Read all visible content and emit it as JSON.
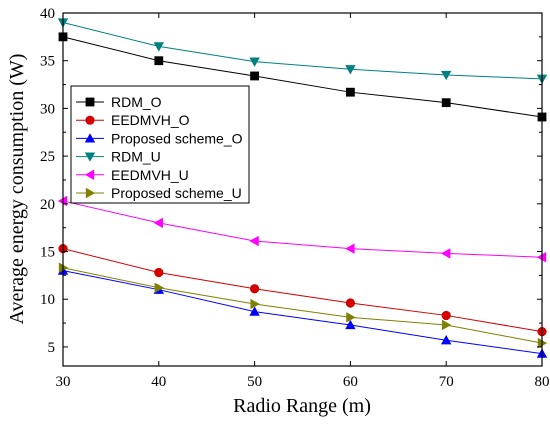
{
  "chart_data": {
    "type": "line",
    "title": "",
    "xlabel": "Radio Range (m)",
    "ylabel": "Average energy consumption (W)",
    "xlim": [
      30,
      80
    ],
    "ylim": [
      3,
      40
    ],
    "x_ticks": [
      30,
      40,
      50,
      60,
      70,
      80
    ],
    "y_ticks": [
      5,
      10,
      15,
      20,
      25,
      30,
      35,
      40
    ],
    "grid": false,
    "legend_position": "center-left",
    "x": [
      30,
      40,
      50,
      60,
      70,
      80
    ],
    "series": [
      {
        "name": "RDM_O",
        "values": [
          37.5,
          35.0,
          33.4,
          31.7,
          30.6,
          29.1
        ],
        "color": "#000000",
        "marker": "square"
      },
      {
        "name": "EEDMVH_O",
        "values": [
          15.3,
          12.8,
          11.1,
          9.6,
          8.3,
          6.6
        ],
        "color": "#d40000",
        "marker": "circle"
      },
      {
        "name": "Proposed scheme_O",
        "values": [
          13.0,
          11.0,
          8.7,
          7.3,
          5.7,
          4.3
        ],
        "color": "#0000ff",
        "marker": "triangle-up"
      },
      {
        "name": "RDM_U",
        "values": [
          39.0,
          36.5,
          34.9,
          34.1,
          33.5,
          33.1
        ],
        "color": "#008080",
        "marker": "triangle-down"
      },
      {
        "name": "EEDMVH_U",
        "values": [
          20.3,
          18.0,
          16.1,
          15.3,
          14.8,
          14.4
        ],
        "color": "#ff00ff",
        "marker": "triangle-left"
      },
      {
        "name": "Proposed scheme_U",
        "values": [
          13.3,
          11.2,
          9.5,
          8.1,
          7.3,
          5.4
        ],
        "color": "#808000",
        "marker": "triangle-right"
      }
    ]
  }
}
